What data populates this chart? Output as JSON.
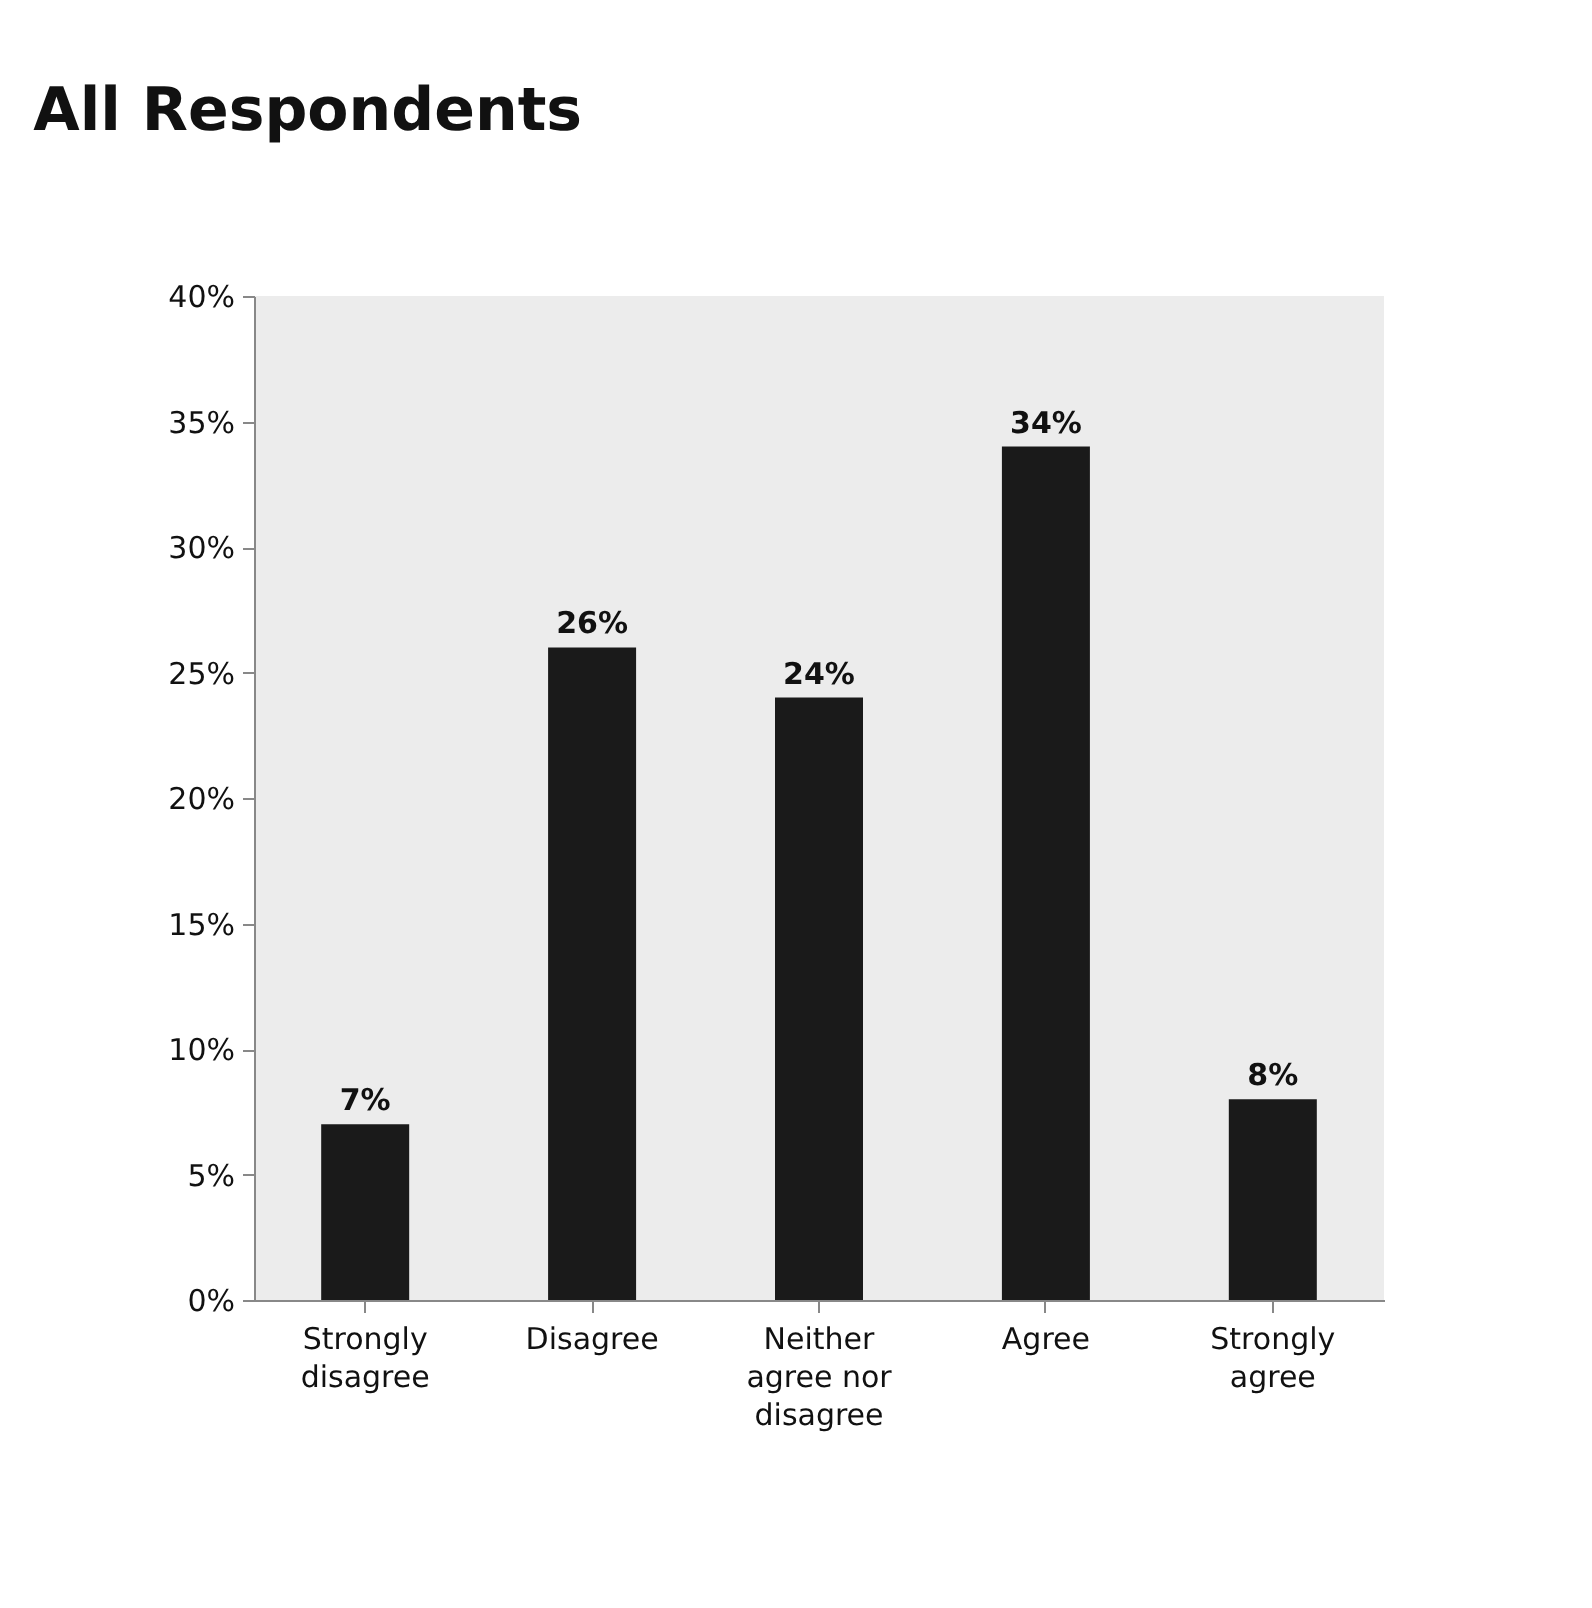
{
  "chart_data": {
    "type": "bar",
    "title": "All Respondents",
    "categories": [
      "Strongly disagree",
      "Disagree",
      "Neither agree nor disagree",
      "Agree",
      "Strongly agree"
    ],
    "values": [
      7,
      26,
      24,
      34,
      8
    ],
    "value_labels": [
      "7%",
      "26%",
      "24%",
      "34%",
      "8%"
    ],
    "color": "#1a1a1a",
    "ylim": [
      0,
      40
    ],
    "yticks": [
      {
        "value": 0,
        "label": "0%"
      },
      {
        "value": 5,
        "label": "5%"
      },
      {
        "value": 10,
        "label": "10%"
      },
      {
        "value": 15,
        "label": "15%"
      },
      {
        "value": 20,
        "label": "20%"
      },
      {
        "value": 25,
        "label": "25%"
      },
      {
        "value": 30,
        "label": "30%"
      },
      {
        "value": 35,
        "label": "35%"
      },
      {
        "value": 40,
        "label": "40%"
      }
    ],
    "grid": false
  }
}
